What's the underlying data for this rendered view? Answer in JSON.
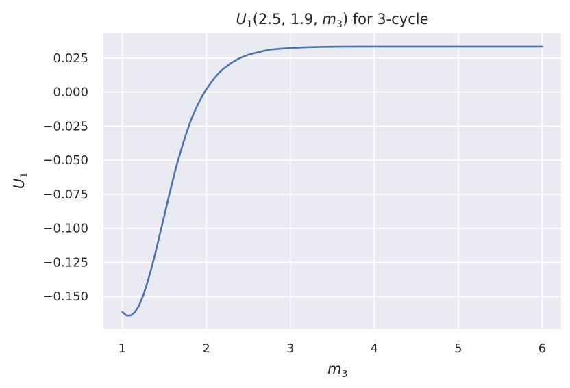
{
  "chart_data": {
    "type": "line",
    "title": {
      "u": "U",
      "u_sub": "1",
      "args": "(2.5, 1.9, ",
      "m": "m",
      "m_sub": "3",
      "rest": ") for 3-cycle"
    },
    "xlabel": {
      "main": "m",
      "sub": "3"
    },
    "ylabel": {
      "main": "U",
      "sub": "1"
    },
    "xlim": [
      0.775,
      6.225
    ],
    "ylim": [
      -0.174,
      0.0435
    ],
    "x_ticks": [
      1,
      2,
      3,
      4,
      5,
      6
    ],
    "x_tick_labels": [
      "1",
      "2",
      "3",
      "4",
      "5",
      "6"
    ],
    "y_ticks": [
      0.025,
      0.0,
      -0.025,
      -0.05,
      -0.075,
      -0.1,
      -0.125,
      -0.15
    ],
    "y_tick_labels": [
      "0.025",
      "0.000",
      "−0.025",
      "−0.050",
      "−0.075",
      "−0.100",
      "−0.125",
      "−0.150"
    ],
    "grid": true,
    "series": [
      {
        "color": "#4c72b0",
        "x": [
          1.0,
          1.05,
          1.1,
          1.15,
          1.2,
          1.25,
          1.3,
          1.35,
          1.4,
          1.45,
          1.5,
          1.55,
          1.6,
          1.65,
          1.7,
          1.75,
          1.8,
          1.85,
          1.9,
          1.95,
          2.0,
          2.05,
          2.1,
          2.15,
          2.2,
          2.3,
          2.4,
          2.5,
          2.6,
          2.7,
          2.8,
          2.9,
          3.0,
          3.2,
          3.4,
          3.6,
          3.8,
          4.0,
          4.5,
          5.0,
          5.5,
          6.0
        ],
        "y": [
          -0.1615,
          -0.164,
          -0.164,
          -0.1615,
          -0.1565,
          -0.149,
          -0.1395,
          -0.1285,
          -0.1165,
          -0.1035,
          -0.0905,
          -0.0775,
          -0.065,
          -0.053,
          -0.0425,
          -0.0325,
          -0.0235,
          -0.0155,
          -0.009,
          -0.003,
          0.002,
          0.0065,
          0.0105,
          0.014,
          0.017,
          0.0215,
          0.025,
          0.0275,
          0.029,
          0.0305,
          0.0315,
          0.032,
          0.0325,
          0.033,
          0.0333,
          0.0334,
          0.0335,
          0.0335,
          0.0335,
          0.0335,
          0.0335,
          0.0335
        ]
      }
    ]
  }
}
